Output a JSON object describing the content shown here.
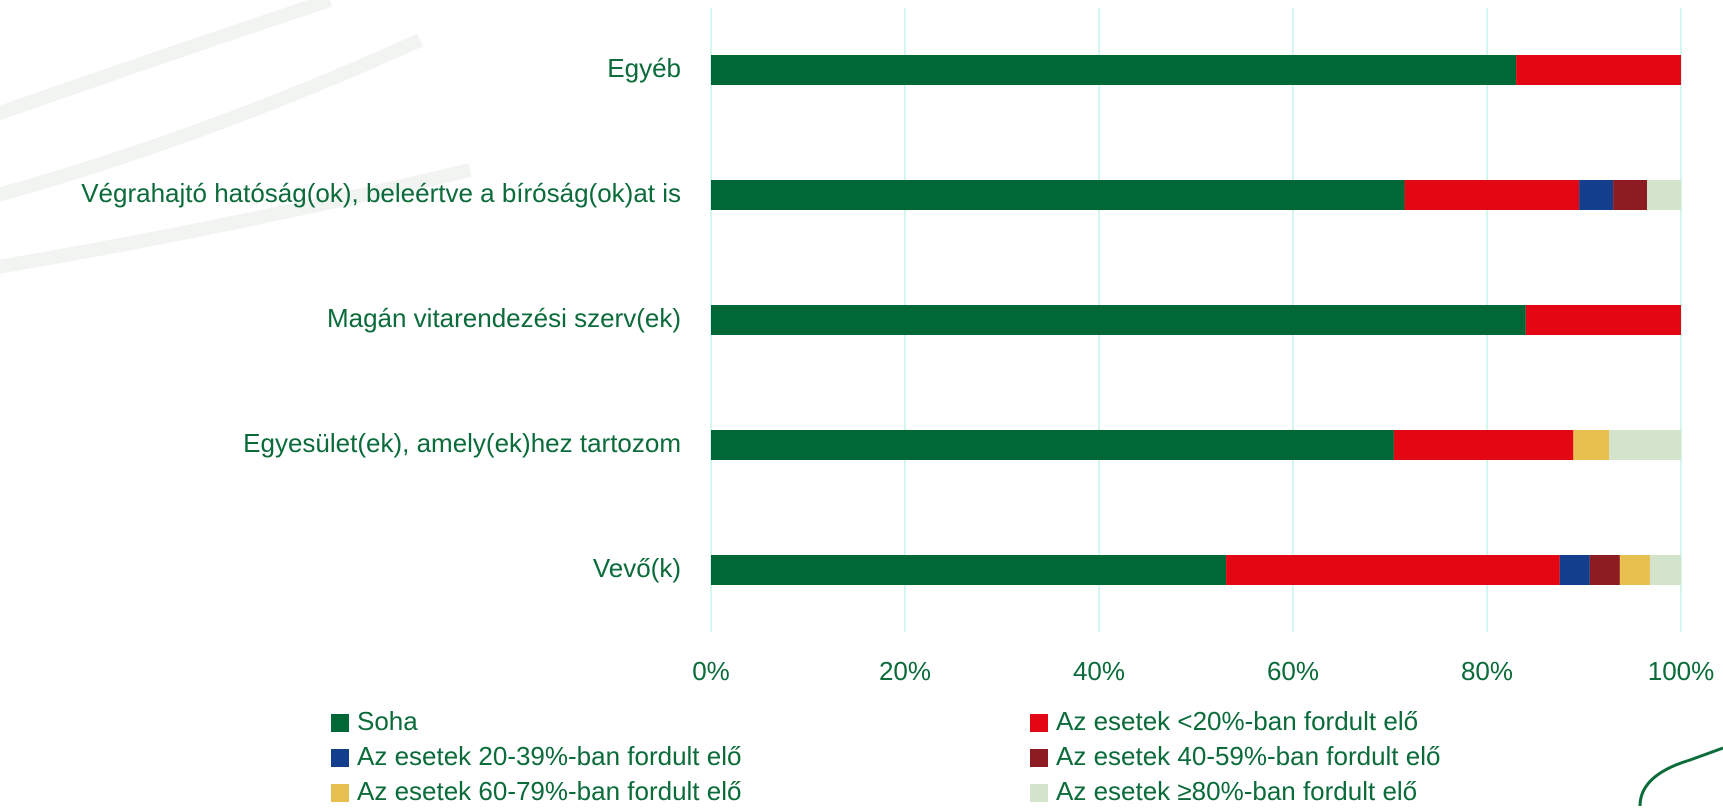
{
  "chart_data": {
    "type": "stacked-barh",
    "categories": [
      "Egyéb",
      "Végrahajtó hatóság(ok), beleértve a bíróság(ok)at is",
      "Magán vitarendezési szerv(ek)",
      "Egyesület(ek), amely(ek)hez tartozom",
      "Vevő(k)"
    ],
    "series": [
      {
        "name": "Soha",
        "color": "#006837",
        "values": [
          83,
          71.5,
          84,
          70.4,
          53.1
        ]
      },
      {
        "name": "Az esetek <20%-ban fordult elő",
        "color": "#e30613",
        "values": [
          17,
          18,
          16,
          18.5,
          34.4
        ]
      },
      {
        "name": "Az esetek 20-39%-ban fordult elő",
        "color": "#123e8c",
        "values": [
          0,
          3.5,
          0,
          0,
          3.1
        ]
      },
      {
        "name": "Az esetek 40-59%-ban fordult elő",
        "color": "#8c1b22",
        "values": [
          0,
          3.5,
          0,
          0,
          3.1
        ]
      },
      {
        "name": "Az esetek 60-79%-ban fordult elő",
        "color": "#e8c04f",
        "values": [
          0,
          0,
          0,
          3.7,
          3.1
        ]
      },
      {
        "name": "Az esetek ≥80%-ban fordult elő",
        "color": "#d3e3cc",
        "values": [
          0,
          3.5,
          0,
          7.4,
          3.2
        ]
      }
    ],
    "xlim": [
      0,
      100
    ],
    "xticks": [
      {
        "value": 0,
        "label": "0%"
      },
      {
        "value": 20,
        "label": "20%"
      },
      {
        "value": 40,
        "label": "40%"
      },
      {
        "value": 60,
        "label": "60%"
      },
      {
        "value": 80,
        "label": "80%"
      },
      {
        "value": 100,
        "label": "100%"
      }
    ],
    "grid": true
  }
}
